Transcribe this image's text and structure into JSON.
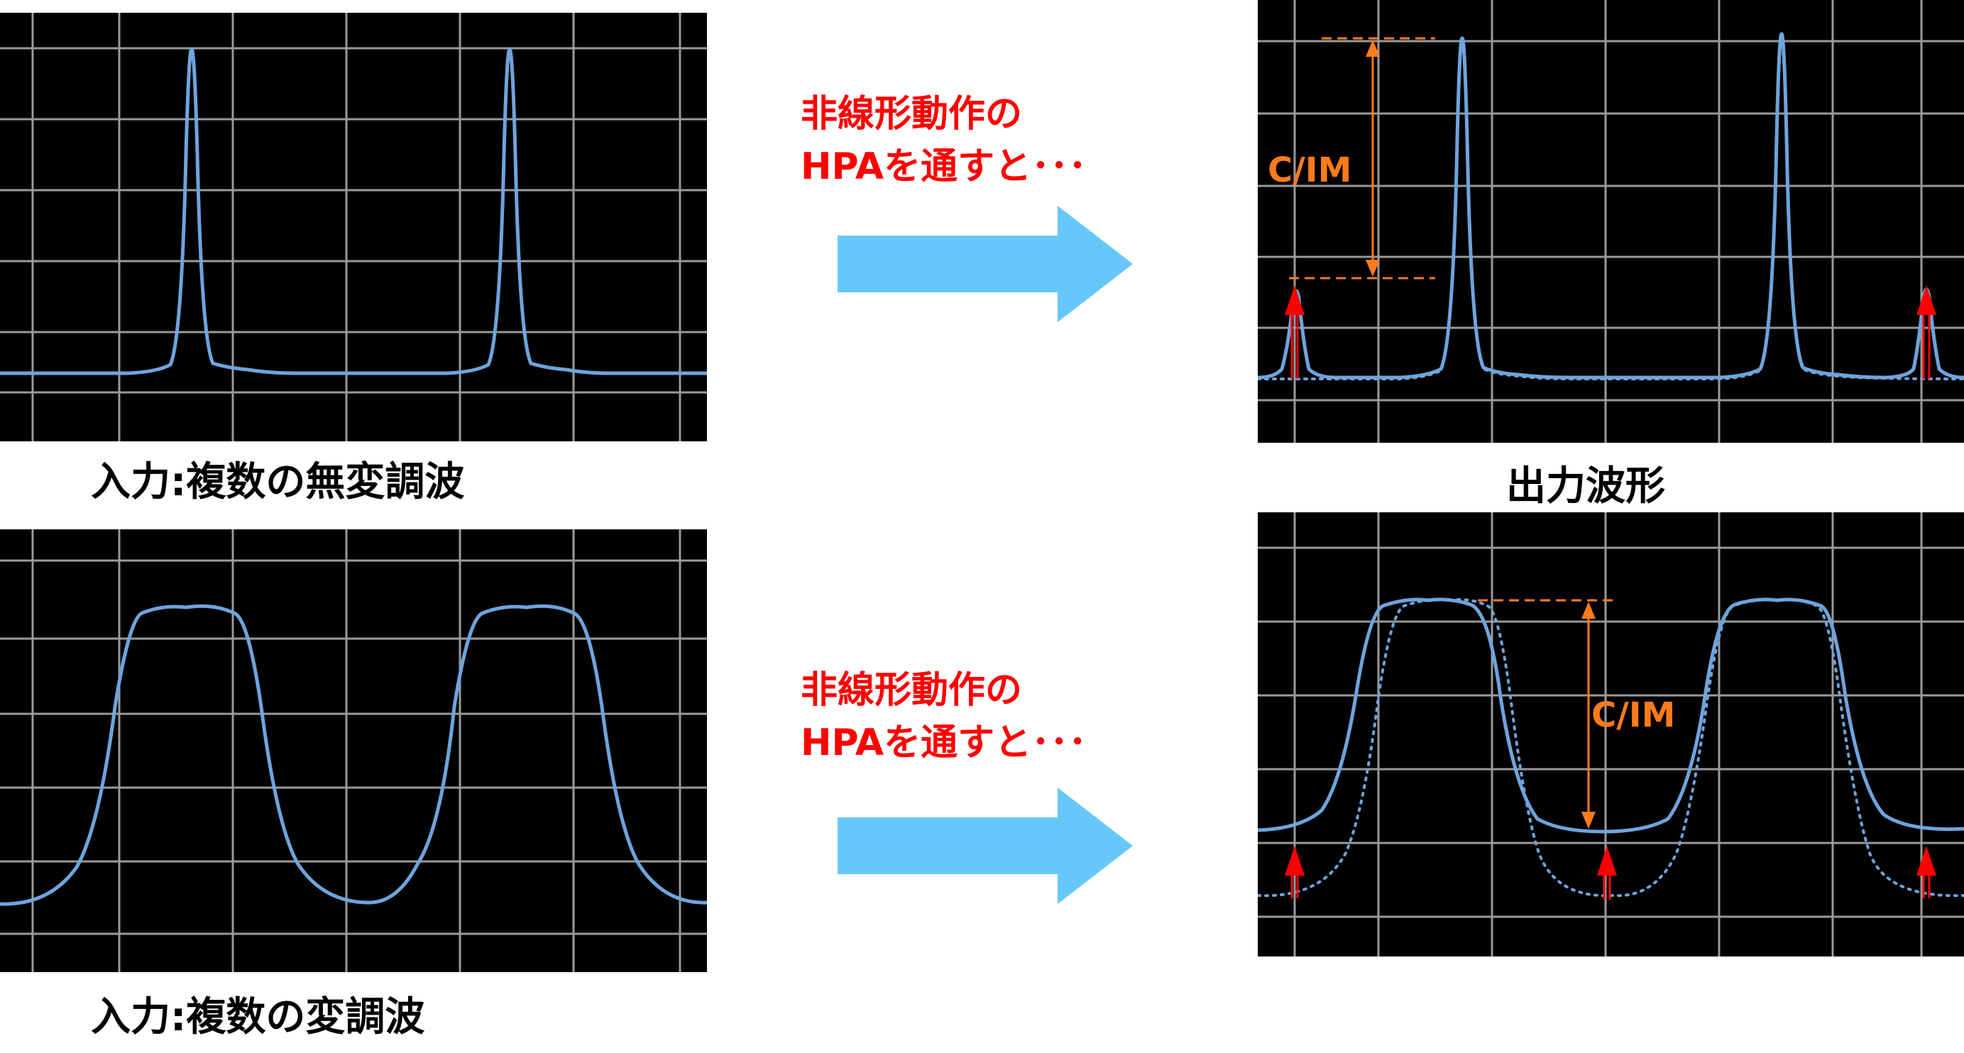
{
  "colors": {
    "scope_background": "#000000",
    "grid": "#9a9a9a",
    "trace": "#6fa4dc",
    "annotation_orange": "#ff7b1a",
    "im_arrow_red": "#ff0000",
    "flow_arrow": "#66c8fa",
    "note_text": "#ff0000"
  },
  "top_row": {
    "input_caption": "入力:複数の無変調波",
    "note_line1": "非線形動作の",
    "note_line2": "HPAを通すと･･･",
    "output_caption": "出力波形",
    "cim_label": "C/IM"
  },
  "bottom_row": {
    "input_caption": "入力:複数の変調波",
    "note_line1": "非線形動作の",
    "note_line2": "HPAを通すと･･･",
    "cim_label": "C/IM"
  },
  "icons": {
    "flow_arrow": "right-arrow-icon",
    "im_marker": "up-arrow-icon"
  }
}
